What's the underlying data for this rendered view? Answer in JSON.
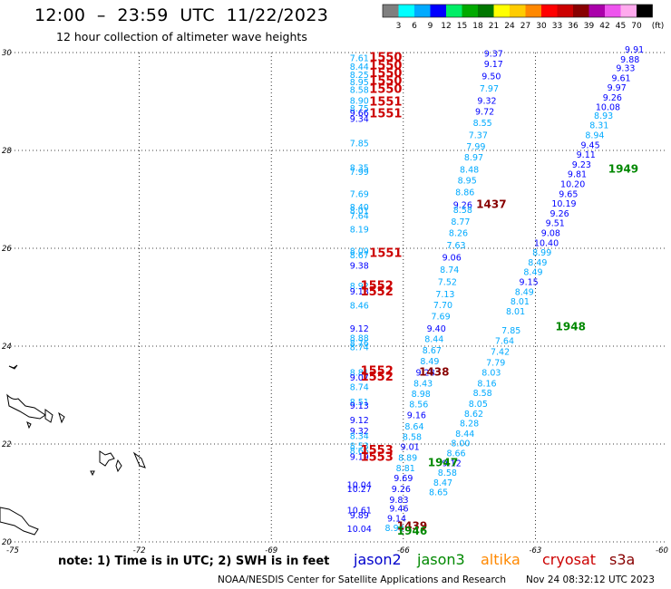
{
  "title": "12:00  –  23:59  UTC  11/22/2023",
  "subtitle": "12 hour collection of altimeter wave heights",
  "colorbar": {
    "unit": "(ft)",
    "labels": [
      "3",
      "6",
      "9",
      "12",
      "15",
      "18",
      "21",
      "24",
      "27",
      "30",
      "33",
      "36",
      "39",
      "42",
      "45",
      "70"
    ],
    "colors": [
      "#7f7f7f",
      "#00ffff",
      "#00aaff",
      "#0000ff",
      "#00ee66",
      "#00aa00",
      "#007700",
      "#ffff00",
      "#ffcc00",
      "#ff8800",
      "#ff0000",
      "#cc0000",
      "#880000",
      "#aa00aa",
      "#ee55ee",
      "#ffaaee",
      "#000000"
    ]
  },
  "axes": {
    "lon_ticks": [
      "-75",
      "-72",
      "-69",
      "-66",
      "-63",
      "-60"
    ],
    "lat_ticks": [
      "30",
      "28",
      "26",
      "24",
      "22",
      "20"
    ]
  },
  "note": "note:  1)  Time is in UTC;  2)  SWH is in feet",
  "legend": [
    {
      "name": "jason2",
      "color": "#0000cc"
    },
    {
      "name": "jason3",
      "color": "#008800"
    },
    {
      "name": "altika",
      "color": "#ff8800"
    },
    {
      "name": "cryosat",
      "color": "#cc0000"
    },
    {
      "name": "s3a",
      "color": "#880000"
    }
  ],
  "credit": "NOAA/NESDIS Center for Satellite Applications and Research",
  "timestamp": "Nov 24 08:32:12 UTC 2023",
  "tracks": {
    "track_a": [
      {
        "lon": -67.0,
        "lat": 29.82,
        "v": "7.61",
        "c": "#00aaff"
      },
      {
        "lon": -67.0,
        "lat": 29.65,
        "v": "8.44",
        "c": "#00aaff"
      },
      {
        "lon": -67.0,
        "lat": 29.48,
        "v": "8.25",
        "c": "#00aaff"
      },
      {
        "lon": -67.0,
        "lat": 29.33,
        "v": "8.95",
        "c": "#00aaff"
      },
      {
        "lon": -67.0,
        "lat": 29.18,
        "v": "8.58",
        "c": "#00aaff"
      },
      {
        "lon": -67.0,
        "lat": 28.95,
        "v": "8.90",
        "c": "#00aaff"
      },
      {
        "lon": -67.0,
        "lat": 28.8,
        "v": "8.75",
        "c": "#00aaff"
      },
      {
        "lon": -67.0,
        "lat": 28.7,
        "v": "9.66",
        "c": "#0000ff"
      },
      {
        "lon": -67.0,
        "lat": 28.58,
        "v": "9.34",
        "c": "#0000ff"
      },
      {
        "lon": -67.0,
        "lat": 28.08,
        "v": "7.85",
        "c": "#00aaff"
      },
      {
        "lon": -67.0,
        "lat": 27.58,
        "v": "8.35",
        "c": "#00aaff"
      },
      {
        "lon": -67.0,
        "lat": 27.5,
        "v": "7.99",
        "c": "#00aaff"
      },
      {
        "lon": -67.0,
        "lat": 27.05,
        "v": "7.69",
        "c": "#00aaff"
      },
      {
        "lon": -67.0,
        "lat": 26.78,
        "v": "8.40",
        "c": "#00aaff"
      },
      {
        "lon": -67.0,
        "lat": 26.7,
        "v": "8.01",
        "c": "#00aaff"
      },
      {
        "lon": -67.0,
        "lat": 26.6,
        "v": "7.64",
        "c": "#00aaff"
      },
      {
        "lon": -67.0,
        "lat": 26.32,
        "v": "8.19",
        "c": "#00aaff"
      },
      {
        "lon": -67.0,
        "lat": 25.88,
        "v": "8.09",
        "c": "#00aaff"
      },
      {
        "lon": -67.0,
        "lat": 25.8,
        "v": "8.67",
        "c": "#00aaff"
      },
      {
        "lon": -67.0,
        "lat": 25.58,
        "v": "9.38",
        "c": "#0000ff"
      },
      {
        "lon": -67.0,
        "lat": 25.17,
        "v": "8.92",
        "c": "#00aaff"
      },
      {
        "lon": -67.0,
        "lat": 25.06,
        "v": "9.18",
        "c": "#0000ff"
      },
      {
        "lon": -67.0,
        "lat": 24.77,
        "v": "8.46",
        "c": "#00aaff"
      },
      {
        "lon": -67.0,
        "lat": 24.3,
        "v": "9.12",
        "c": "#0000ff"
      },
      {
        "lon": -67.0,
        "lat": 24.1,
        "v": "8.88",
        "c": "#00aaff"
      },
      {
        "lon": -67.0,
        "lat": 24.0,
        "v": "8.76",
        "c": "#00aaff"
      },
      {
        "lon": -67.0,
        "lat": 23.92,
        "v": "8.74",
        "c": "#00aaff"
      },
      {
        "lon": -67.0,
        "lat": 23.4,
        "v": "8.81",
        "c": "#00aaff"
      },
      {
        "lon": -67.0,
        "lat": 23.3,
        "v": "9.07",
        "c": "#0000ff"
      },
      {
        "lon": -67.0,
        "lat": 23.1,
        "v": "8.74",
        "c": "#00aaff"
      },
      {
        "lon": -67.0,
        "lat": 22.8,
        "v": "8.51",
        "c": "#00aaff"
      },
      {
        "lon": -67.0,
        "lat": 22.72,
        "v": "9.13",
        "c": "#0000ff"
      },
      {
        "lon": -67.0,
        "lat": 22.43,
        "v": "9.12",
        "c": "#0000ff"
      },
      {
        "lon": -67.0,
        "lat": 22.2,
        "v": "9.32",
        "c": "#0000ff"
      },
      {
        "lon": -67.0,
        "lat": 22.1,
        "v": "8.34",
        "c": "#00aaff"
      },
      {
        "lon": -67.0,
        "lat": 21.9,
        "v": "8.53",
        "c": "#00aaff"
      },
      {
        "lon": -67.0,
        "lat": 21.8,
        "v": "8.66",
        "c": "#00aaff"
      },
      {
        "lon": -67.0,
        "lat": 21.68,
        "v": "9.19",
        "c": "#0000ff"
      },
      {
        "lon": -67.0,
        "lat": 21.1,
        "v": "10.04",
        "c": "#0000ff"
      },
      {
        "lon": -67.0,
        "lat": 21.02,
        "v": "10.27",
        "c": "#0000ff"
      },
      {
        "lon": -67.0,
        "lat": 20.58,
        "v": "10.61",
        "c": "#0000ff"
      },
      {
        "lon": -67.0,
        "lat": 20.48,
        "v": "9.89",
        "c": "#0000ff"
      },
      {
        "lon": -67.0,
        "lat": 20.2,
        "v": "10.04",
        "c": "#0000ff"
      }
    ],
    "times_a": [
      {
        "lon": -66.4,
        "lat": 29.82,
        "v": "1550",
        "c": "#cc0000"
      },
      {
        "lon": -66.4,
        "lat": 29.66,
        "v": "1550",
        "c": "#cc0000"
      },
      {
        "lon": -66.4,
        "lat": 29.5,
        "v": "1550",
        "c": "#cc0000"
      },
      {
        "lon": -66.4,
        "lat": 29.34,
        "v": "1550",
        "c": "#cc0000"
      },
      {
        "lon": -66.4,
        "lat": 29.18,
        "v": "1550",
        "c": "#cc0000"
      },
      {
        "lon": -66.4,
        "lat": 28.92,
        "v": "1551",
        "c": "#cc0000"
      },
      {
        "lon": -66.4,
        "lat": 28.68,
        "v": "1551",
        "c": "#cc0000"
      },
      {
        "lon": -66.4,
        "lat": 25.82,
        "v": "1551",
        "c": "#cc0000"
      },
      {
        "lon": -66.6,
        "lat": 25.16,
        "v": "1552",
        "c": "#cc0000"
      },
      {
        "lon": -66.6,
        "lat": 25.04,
        "v": "1552",
        "c": "#cc0000"
      },
      {
        "lon": -66.6,
        "lat": 23.42,
        "v": "1552",
        "c": "#cc0000"
      },
      {
        "lon": -66.6,
        "lat": 23.3,
        "v": "1552",
        "c": "#cc0000"
      },
      {
        "lon": -66.6,
        "lat": 21.8,
        "v": "1553",
        "c": "#cc0000"
      },
      {
        "lon": -66.6,
        "lat": 21.66,
        "v": "1553",
        "c": "#cc0000"
      }
    ],
    "track_b": [
      {
        "lon": -63.95,
        "lat": 29.92,
        "v": "9.37",
        "c": "#0000ff"
      },
      {
        "lon": -63.95,
        "lat": 29.7,
        "v": "9.17",
        "c": "#0000ff"
      },
      {
        "lon": -64.0,
        "lat": 29.45,
        "v": "9.50",
        "c": "#0000ff"
      },
      {
        "lon": -64.05,
        "lat": 29.2,
        "v": "7.97",
        "c": "#00aaff"
      },
      {
        "lon": -64.1,
        "lat": 28.95,
        "v": "9.32",
        "c": "#0000ff"
      },
      {
        "lon": -64.15,
        "lat": 28.73,
        "v": "9.72",
        "c": "#0000ff"
      },
      {
        "lon": -64.2,
        "lat": 28.5,
        "v": "8.55",
        "c": "#00aaff"
      },
      {
        "lon": -64.3,
        "lat": 28.25,
        "v": "7.37",
        "c": "#00aaff"
      },
      {
        "lon": -64.35,
        "lat": 28.02,
        "v": "7.99",
        "c": "#00aaff"
      },
      {
        "lon": -64.4,
        "lat": 27.8,
        "v": "8.97",
        "c": "#00aaff"
      },
      {
        "lon": -64.5,
        "lat": 27.55,
        "v": "8.48",
        "c": "#00aaff"
      },
      {
        "lon": -64.55,
        "lat": 27.32,
        "v": "8.95",
        "c": "#00aaff"
      },
      {
        "lon": -64.6,
        "lat": 27.08,
        "v": "8.86",
        "c": "#00aaff"
      },
      {
        "lon": -64.65,
        "lat": 26.82,
        "v": "9.26",
        "c": "#0000ff"
      },
      {
        "lon": -64.65,
        "lat": 26.72,
        "v": "8.58",
        "c": "#00aaff"
      },
      {
        "lon": -64.7,
        "lat": 26.48,
        "v": "8.77",
        "c": "#00aaff"
      },
      {
        "lon": -64.75,
        "lat": 26.25,
        "v": "8.26",
        "c": "#00aaff"
      },
      {
        "lon": -64.8,
        "lat": 26.0,
        "v": "7.63",
        "c": "#00aaff"
      },
      {
        "lon": -64.9,
        "lat": 25.75,
        "v": "9.06",
        "c": "#0000ff"
      },
      {
        "lon": -64.95,
        "lat": 25.5,
        "v": "8.74",
        "c": "#00aaff"
      },
      {
        "lon": -65.0,
        "lat": 25.25,
        "v": "7.52",
        "c": "#00aaff"
      },
      {
        "lon": -65.05,
        "lat": 25.0,
        "v": "7.13",
        "c": "#00aaff"
      },
      {
        "lon": -65.1,
        "lat": 24.78,
        "v": "7.70",
        "c": "#00aaff"
      },
      {
        "lon": -65.15,
        "lat": 24.55,
        "v": "7.69",
        "c": "#00aaff"
      },
      {
        "lon": -65.25,
        "lat": 24.3,
        "v": "9.40",
        "c": "#0000ff"
      },
      {
        "lon": -65.3,
        "lat": 24.08,
        "v": "8.44",
        "c": "#00aaff"
      },
      {
        "lon": -65.35,
        "lat": 23.85,
        "v": "8.67",
        "c": "#00aaff"
      },
      {
        "lon": -65.4,
        "lat": 23.63,
        "v": "8.49",
        "c": "#00aaff"
      },
      {
        "lon": -65.5,
        "lat": 23.4,
        "v": "9.28",
        "c": "#0000ff"
      },
      {
        "lon": -65.55,
        "lat": 23.18,
        "v": "8.43",
        "c": "#00aaff"
      },
      {
        "lon": -65.6,
        "lat": 22.96,
        "v": "8.98",
        "c": "#00aaff"
      },
      {
        "lon": -65.65,
        "lat": 22.75,
        "v": "8.56",
        "c": "#00aaff"
      },
      {
        "lon": -65.7,
        "lat": 22.53,
        "v": "9.16",
        "c": "#0000ff"
      },
      {
        "lon": -65.75,
        "lat": 22.3,
        "v": "8.64",
        "c": "#00aaff"
      },
      {
        "lon": -65.8,
        "lat": 22.08,
        "v": "8.58",
        "c": "#00aaff"
      },
      {
        "lon": -65.85,
        "lat": 21.88,
        "v": "9.01",
        "c": "#0000ff"
      },
      {
        "lon": -65.9,
        "lat": 21.66,
        "v": "8.89",
        "c": "#00aaff"
      },
      {
        "lon": -65.95,
        "lat": 21.44,
        "v": "8.81",
        "c": "#00aaff"
      },
      {
        "lon": -66.0,
        "lat": 21.24,
        "v": "9.69",
        "c": "#0000ff"
      },
      {
        "lon": -66.05,
        "lat": 21.02,
        "v": "9.26",
        "c": "#0000ff"
      },
      {
        "lon": -66.1,
        "lat": 20.8,
        "v": "9.83",
        "c": "#0000ff"
      },
      {
        "lon": -66.1,
        "lat": 20.62,
        "v": "9.46",
        "c": "#0000ff"
      },
      {
        "lon": -66.15,
        "lat": 20.42,
        "v": "9.14",
        "c": "#0000ff"
      },
      {
        "lon": -66.2,
        "lat": 20.22,
        "v": "8.93",
        "c": "#00aaff"
      }
    ],
    "track_c": [
      {
        "lon": -64.0,
        "lat": 26.82,
        "v": "1437",
        "c": "#880000"
      },
      {
        "lon": -65.3,
        "lat": 23.4,
        "v": "1438",
        "c": "#880000"
      },
      {
        "lon": -65.8,
        "lat": 20.25,
        "v": "1439",
        "c": "#880000"
      }
    ],
    "track_d": [
      {
        "lon": -63.55,
        "lat": 24.26,
        "v": "7.85",
        "c": "#00aaff"
      },
      {
        "lon": -63.7,
        "lat": 24.05,
        "v": "7.64",
        "c": "#00aaff"
      },
      {
        "lon": -63.8,
        "lat": 23.82,
        "v": "7.42",
        "c": "#00aaff"
      },
      {
        "lon": -63.9,
        "lat": 23.6,
        "v": "7.79",
        "c": "#00aaff"
      },
      {
        "lon": -64.0,
        "lat": 23.4,
        "v": "8.03",
        "c": "#00aaff"
      },
      {
        "lon": -64.1,
        "lat": 23.18,
        "v": "8.16",
        "c": "#00aaff"
      },
      {
        "lon": -64.2,
        "lat": 22.98,
        "v": "8.58",
        "c": "#00aaff"
      },
      {
        "lon": -64.3,
        "lat": 22.76,
        "v": "8.05",
        "c": "#00aaff"
      },
      {
        "lon": -64.4,
        "lat": 22.56,
        "v": "8.62",
        "c": "#00aaff"
      },
      {
        "lon": -64.5,
        "lat": 22.36,
        "v": "8.28",
        "c": "#00aaff"
      },
      {
        "lon": -64.6,
        "lat": 22.15,
        "v": "8.44",
        "c": "#00aaff"
      },
      {
        "lon": -64.7,
        "lat": 21.95,
        "v": "8.00",
        "c": "#00aaff"
      },
      {
        "lon": -64.8,
        "lat": 21.75,
        "v": "8.66",
        "c": "#00aaff"
      },
      {
        "lon": -64.9,
        "lat": 21.55,
        "v": "9.12",
        "c": "#0000ff"
      },
      {
        "lon": -65.0,
        "lat": 21.35,
        "v": "8.58",
        "c": "#00aaff"
      },
      {
        "lon": -65.1,
        "lat": 21.15,
        "v": "8.47",
        "c": "#00aaff"
      },
      {
        "lon": -65.2,
        "lat": 20.95,
        "v": "8.65",
        "c": "#00aaff"
      }
    ],
    "track_e": [
      {
        "lon": -60.75,
        "lat": 30.0,
        "v": "9.91",
        "c": "#0000ff"
      },
      {
        "lon": -60.85,
        "lat": 29.8,
        "v": "9.88",
        "c": "#0000ff"
      },
      {
        "lon": -60.95,
        "lat": 29.62,
        "v": "9.33",
        "c": "#0000ff"
      },
      {
        "lon": -61.05,
        "lat": 29.42,
        "v": "9.61",
        "c": "#0000ff"
      },
      {
        "lon": -61.15,
        "lat": 29.22,
        "v": "9.97",
        "c": "#0000ff"
      },
      {
        "lon": -61.25,
        "lat": 29.02,
        "v": "9.26",
        "c": "#0000ff"
      },
      {
        "lon": -61.35,
        "lat": 28.82,
        "v": "10.08",
        "c": "#0000ff"
      },
      {
        "lon": -61.45,
        "lat": 28.65,
        "v": "8.93",
        "c": "#00aaff"
      },
      {
        "lon": -61.55,
        "lat": 28.45,
        "v": "8.31",
        "c": "#00aaff"
      },
      {
        "lon": -61.65,
        "lat": 28.25,
        "v": "8.94",
        "c": "#00aaff"
      },
      {
        "lon": -61.75,
        "lat": 28.05,
        "v": "9.45",
        "c": "#0000ff"
      },
      {
        "lon": -61.85,
        "lat": 27.85,
        "v": "9.11",
        "c": "#0000ff"
      },
      {
        "lon": -61.95,
        "lat": 27.65,
        "v": "9.23",
        "c": "#0000ff"
      },
      {
        "lon": -62.05,
        "lat": 27.45,
        "v": "9.81",
        "c": "#0000ff"
      },
      {
        "lon": -62.15,
        "lat": 27.25,
        "v": "10.20",
        "c": "#0000ff"
      },
      {
        "lon": -62.25,
        "lat": 27.05,
        "v": "9.65",
        "c": "#0000ff"
      },
      {
        "lon": -62.35,
        "lat": 26.85,
        "v": "10.19",
        "c": "#0000ff"
      },
      {
        "lon": -62.45,
        "lat": 26.65,
        "v": "9.26",
        "c": "#0000ff"
      },
      {
        "lon": -62.55,
        "lat": 26.45,
        "v": "9.51",
        "c": "#0000ff"
      },
      {
        "lon": -62.65,
        "lat": 26.25,
        "v": "9.08",
        "c": "#0000ff"
      },
      {
        "lon": -62.75,
        "lat": 26.05,
        "v": "10.40",
        "c": "#0000ff"
      },
      {
        "lon": -62.85,
        "lat": 25.85,
        "v": "8.99",
        "c": "#00aaff"
      },
      {
        "lon": -62.95,
        "lat": 25.65,
        "v": "8.49",
        "c": "#00aaff"
      },
      {
        "lon": -63.05,
        "lat": 25.45,
        "v": "8.49",
        "c": "#00aaff"
      },
      {
        "lon": -63.15,
        "lat": 25.25,
        "v": "9.15",
        "c": "#0000ff"
      },
      {
        "lon": -63.25,
        "lat": 25.05,
        "v": "8.49",
        "c": "#00aaff"
      },
      {
        "lon": -63.35,
        "lat": 24.85,
        "v": "8.01",
        "c": "#00aaff"
      },
      {
        "lon": -63.45,
        "lat": 24.65,
        "v": "8.01",
        "c": "#00aaff"
      }
    ],
    "track_f": [
      {
        "lon": -61.0,
        "lat": 27.55,
        "v": "1949",
        "c": "#008800"
      },
      {
        "lon": -62.2,
        "lat": 24.32,
        "v": "1948",
        "c": "#008800"
      },
      {
        "lon": -65.1,
        "lat": 21.55,
        "v": "1947",
        "c": "#008800"
      },
      {
        "lon": -65.8,
        "lat": 20.15,
        "v": "1946",
        "c": "#008800"
      }
    ]
  }
}
